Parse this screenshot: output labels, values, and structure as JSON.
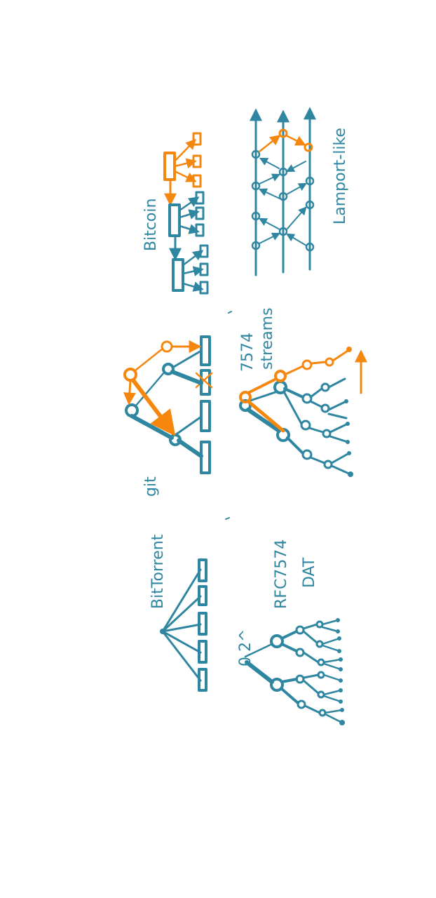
{
  "colors": {
    "teal": "#2f86a0",
    "orange": "#f5870f",
    "background": "#ffffff"
  },
  "labels": {
    "bittorrent": "BitTorrent",
    "git": "git",
    "bitcoin": "Bitcoin",
    "zero_level": "0 2^",
    "rfc7574": "RFC7574",
    "dat": "DAT",
    "rfc7574_streams": "7574",
    "streams": "streams",
    "lamport": "Lamport-like"
  }
}
